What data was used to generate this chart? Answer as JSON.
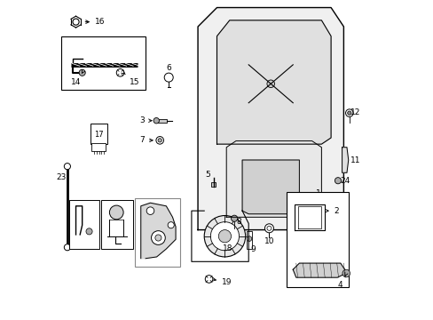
{
  "title": "",
  "background_color": "#ffffff",
  "line_color": "#000000",
  "fig_width": 4.89,
  "fig_height": 3.6,
  "dpi": 100
}
